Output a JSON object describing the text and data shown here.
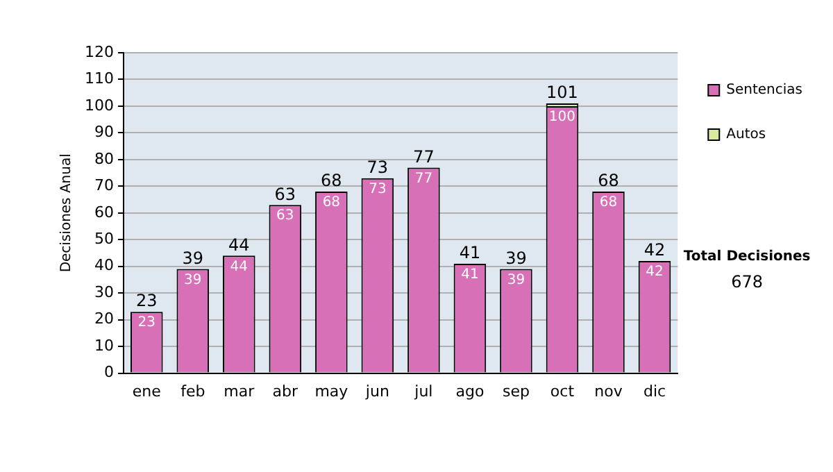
{
  "chart_data": {
    "type": "bar",
    "ylabel": "Decisiones Anual",
    "categories": [
      "ene",
      "feb",
      "mar",
      "abr",
      "may",
      "jun",
      "jul",
      "ago",
      "sep",
      "oct",
      "nov",
      "dic"
    ],
    "series": [
      {
        "name": "Sentencias",
        "color": "#d870b8",
        "values": [
          23,
          39,
          44,
          63,
          68,
          73,
          77,
          41,
          39,
          100,
          68,
          42
        ],
        "value_labels": [
          "23",
          "39",
          "44",
          "63",
          "68",
          "73",
          "77",
          "41",
          "39",
          "100",
          "68",
          "42"
        ]
      },
      {
        "name": "Autos",
        "color": "#d8eca0",
        "values": [
          0,
          0,
          0,
          0,
          0,
          0,
          0,
          0,
          0,
          1,
          0,
          0
        ]
      }
    ],
    "stacked": true,
    "totals": [
      "23",
      "39",
      "44",
      "63",
      "68",
      "73",
      "77",
      "41",
      "39",
      "101",
      "68",
      "42"
    ],
    "ylim": [
      0,
      120
    ],
    "yticks": [
      0,
      10,
      20,
      30,
      40,
      50,
      60,
      70,
      80,
      90,
      100,
      110,
      120
    ],
    "grid": "y",
    "legend": "right",
    "annotations": [
      "Total Decisiones",
      "678"
    ]
  }
}
